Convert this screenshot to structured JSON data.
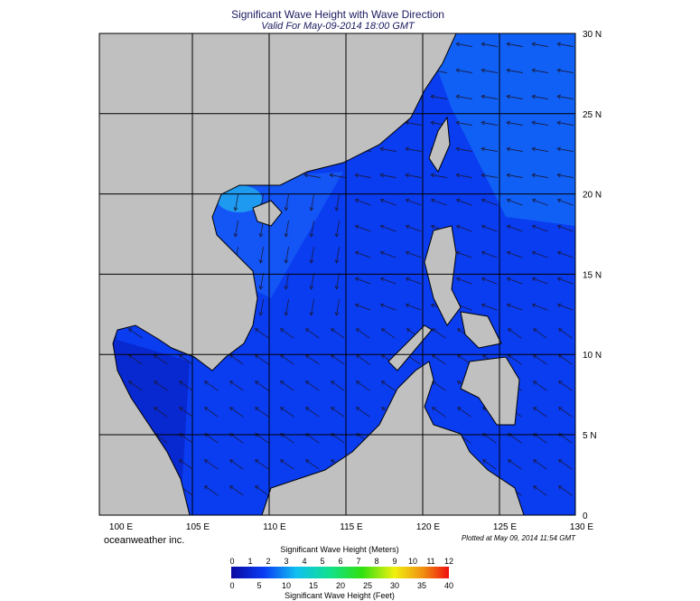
{
  "header": {
    "title": "Significant Wave Height with Wave Direction",
    "subtitle": "Valid For May-09-2014 18:00 GMT"
  },
  "map": {
    "lat_labels": [
      "30 N",
      "25 N",
      "20 N",
      "15 N",
      "10 N",
      "5 N",
      "0"
    ],
    "lon_labels": [
      "100 E",
      "105 E",
      "110 E",
      "115 E",
      "120 E",
      "125 E",
      "130 E"
    ]
  },
  "footer": {
    "credit": "oceanweather inc.",
    "plotted": "Plotted at May 09, 2014 11:54 GMT"
  },
  "legend": {
    "meters_title": "Significant Wave Height (Meters)",
    "meters_ticks": [
      "0",
      "1",
      "2",
      "3",
      "4",
      "5",
      "6",
      "7",
      "8",
      "9",
      "10",
      "11",
      "12"
    ],
    "feet_ticks": [
      "0",
      "5",
      "10",
      "15",
      "20",
      "25",
      "30",
      "35",
      "40"
    ],
    "feet_title": "Significant Wave Height (Feet)"
  }
}
